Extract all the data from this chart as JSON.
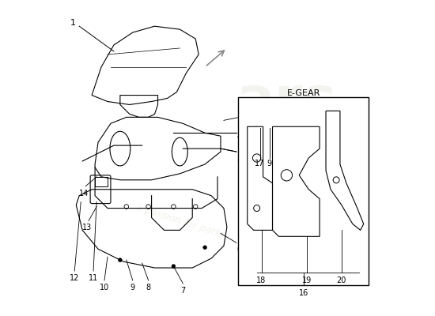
{
  "background_color": "#ffffff",
  "egear_label": "E-GEAR",
  "watermark_color1": "#e8e8e0",
  "watermark_color2": "#dedec0",
  "watermark_color3": "#e0e0d0",
  "line_color": "#000000",
  "gray_color": "#888888",
  "figsize": [
    5.5,
    4.0
  ],
  "dpi": 100
}
